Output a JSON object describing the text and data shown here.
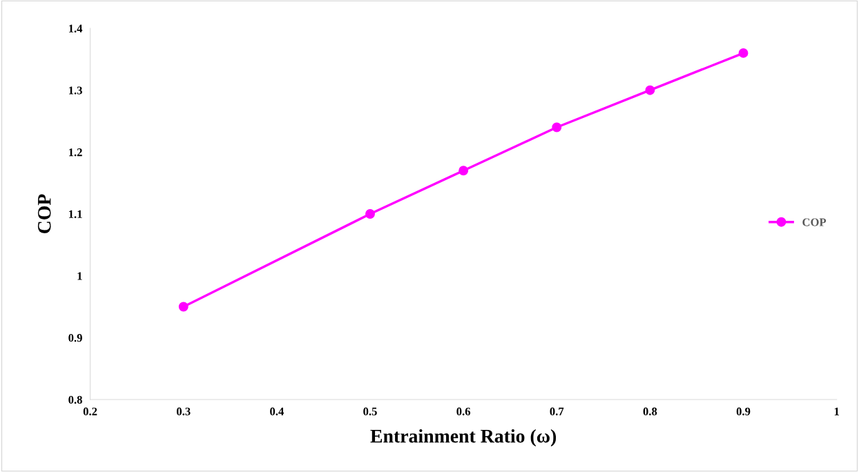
{
  "chart_data": {
    "type": "line",
    "xlabel": "Entrainment Ratio (ω)",
    "ylabel": "COP",
    "x": [
      0.3,
      0.5,
      0.6,
      0.7,
      0.8,
      0.9
    ],
    "series": [
      {
        "name": "COP",
        "color": "#ff00ff",
        "values": [
          0.95,
          1.1,
          1.17,
          1.24,
          1.3,
          1.36
        ]
      }
    ],
    "xlim": [
      0.2,
      1
    ],
    "xticks": [
      0.2,
      0.3,
      0.4,
      0.5,
      0.6,
      0.7,
      0.8,
      0.9,
      1
    ],
    "ylim": [
      0.8,
      1.4
    ],
    "yticks": [
      0.8,
      0.9,
      1,
      1.1,
      1.2,
      1.3,
      1.4
    ],
    "grid": false,
    "legend": "right",
    "marker": "circle",
    "line_style": "solid"
  }
}
